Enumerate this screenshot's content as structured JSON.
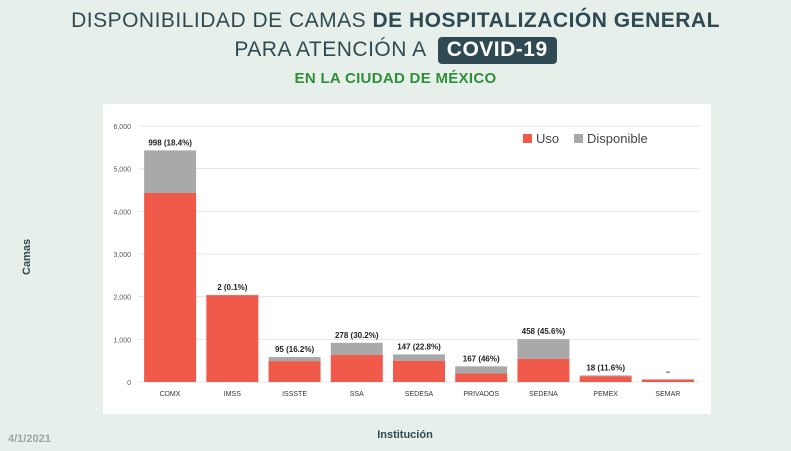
{
  "header": {
    "title_line1_regular": "DISPONIBILIDAD DE CAMAS",
    "title_line1_bold": "DE HOSPITALIZACIÓN GENERAL",
    "title_line2": "PARA ATENCIÓN A",
    "title_badge": "COVID-19",
    "subtitle": "EN LA CIUDAD DE MÉXICO"
  },
  "footer": {
    "date": "4/1/2021"
  },
  "colors": {
    "uso": "#f05a4a",
    "disponible": "#a9a9a9",
    "title": "#2f4a52",
    "subtitle": "#2f8f3a"
  },
  "chart_data": {
    "type": "bar",
    "stacked": true,
    "xlabel": "Institución",
    "ylabel": "Camas",
    "ylim": [
      0,
      6000
    ],
    "yticks": [
      "0",
      "1,000",
      "2,000",
      "3,000",
      "4,000",
      "5,000",
      "6,000"
    ],
    "grid": true,
    "legend_position": "top-right",
    "categories": [
      "CDMX",
      "IMSS",
      "ISSSTE",
      "SSA",
      "SEDESA",
      "PRIVADOS",
      "SEDENA",
      "PEMEX",
      "SEMAR"
    ],
    "series": [
      {
        "name": "Uso",
        "color": "#f05a4a",
        "values": [
          4430,
          2040,
          490,
          640,
          500,
          200,
          545,
          137,
          60
        ]
      },
      {
        "name": "Disponible",
        "color": "#a9a9a9",
        "values": [
          998,
          2,
          95,
          278,
          147,
          167,
          458,
          18,
          0
        ]
      }
    ],
    "data_labels": [
      "998 (18.4%)",
      "2 (0.1%)",
      "95 (16.2%)",
      "278 (30.2%)",
      "147 (22.8%)",
      "167 (46%)",
      "458 (45.6%)",
      "18 (11.6%)",
      "–"
    ]
  }
}
